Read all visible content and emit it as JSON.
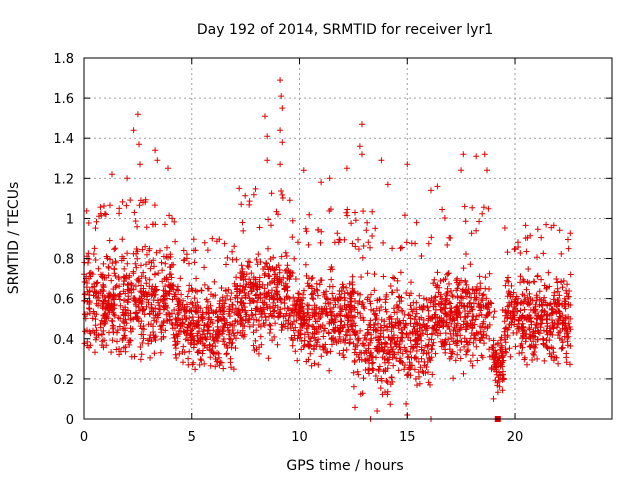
{
  "chart_data": {
    "type": "scatter",
    "title": "Day 192 of 2014, SRMTID for receiver lyr1",
    "xlabel": "GPS time / hours",
    "ylabel": "SRMTID / TECUs",
    "xlim": [
      0,
      24.5
    ],
    "ylim": [
      0,
      1.8
    ],
    "xticks": [
      0,
      5,
      10,
      15,
      20
    ],
    "yticks": [
      0,
      0.2,
      0.4,
      0.6,
      0.8,
      1,
      1.2,
      1.4,
      1.6,
      1.8
    ],
    "ytick_labels": [
      "0",
      "0.2",
      "0.4",
      "0.6",
      "0.8",
      "1",
      "1.2",
      "1.4",
      "1.6",
      "1.8"
    ],
    "xtick_labels": [
      "0",
      "5",
      "10",
      "15",
      "20"
    ],
    "grid": true,
    "marker": "plus",
    "color": "#e00000",
    "outliers": [
      {
        "x": 2.5,
        "y": 1.52
      },
      {
        "x": 2.3,
        "y": 1.44
      },
      {
        "x": 2.55,
        "y": 1.37
      },
      {
        "x": 3.3,
        "y": 1.34
      },
      {
        "x": 3.4,
        "y": 1.29
      },
      {
        "x": 2.6,
        "y": 1.27
      },
      {
        "x": 3.9,
        "y": 1.25
      },
      {
        "x": 1.3,
        "y": 1.22
      },
      {
        "x": 2.0,
        "y": 1.2
      },
      {
        "x": 8.4,
        "y": 1.51
      },
      {
        "x": 8.5,
        "y": 1.41
      },
      {
        "x": 8.5,
        "y": 1.29
      },
      {
        "x": 9.1,
        "y": 1.69
      },
      {
        "x": 9.15,
        "y": 1.61
      },
      {
        "x": 9.2,
        "y": 1.55
      },
      {
        "x": 9.1,
        "y": 1.44
      },
      {
        "x": 9.2,
        "y": 1.38
      },
      {
        "x": 9.1,
        "y": 1.27
      },
      {
        "x": 10.2,
        "y": 1.24
      },
      {
        "x": 11.4,
        "y": 1.2
      },
      {
        "x": 12.2,
        "y": 1.25
      },
      {
        "x": 12.9,
        "y": 1.47
      },
      {
        "x": 12.8,
        "y": 1.36
      },
      {
        "x": 12.9,
        "y": 1.32
      },
      {
        "x": 13.8,
        "y": 1.29
      },
      {
        "x": 15.0,
        "y": 1.27
      },
      {
        "x": 14.1,
        "y": 1.17
      },
      {
        "x": 17.6,
        "y": 1.32
      },
      {
        "x": 18.2,
        "y": 1.31
      },
      {
        "x": 18.6,
        "y": 1.32
      },
      {
        "x": 18.7,
        "y": 1.24
      },
      {
        "x": 17.5,
        "y": 1.24
      },
      {
        "x": 16.4,
        "y": 1.16
      },
      {
        "x": 16.1,
        "y": 1.14
      },
      {
        "x": 11.0,
        "y": 1.18
      },
      {
        "x": 7.2,
        "y": 1.15
      }
    ],
    "dense_segments": [
      {
        "x_start": 0.0,
        "x_end": 4.2,
        "low": 0.22,
        "high": 0.95,
        "peak": 1.1
      },
      {
        "x_start": 4.2,
        "x_end": 7.0,
        "low": 0.18,
        "high": 0.75,
        "peak": 0.9
      },
      {
        "x_start": 7.0,
        "x_end": 9.6,
        "low": 0.25,
        "high": 0.95,
        "peak": 1.15
      },
      {
        "x_start": 9.6,
        "x_end": 12.5,
        "low": 0.2,
        "high": 0.85,
        "peak": 1.05
      },
      {
        "x_start": 12.5,
        "x_end": 16.2,
        "low": 0.02,
        "high": 0.8,
        "peak": 1.05
      },
      {
        "x_start": 16.2,
        "x_end": 18.9,
        "low": 0.18,
        "high": 0.85,
        "peak": 1.1
      },
      {
        "x_start": 18.9,
        "x_end": 19.5,
        "low": 0.08,
        "high": 0.5,
        "peak": 0.55
      },
      {
        "x_start": 19.5,
        "x_end": 22.6,
        "low": 0.2,
        "high": 0.8,
        "peak": 0.97
      }
    ],
    "low_points": [
      {
        "x": 13.3,
        "y": 0.0
      },
      {
        "x": 15.0,
        "y": 0.02
      },
      {
        "x": 16.1,
        "y": 0.0
      },
      {
        "x": 19.0,
        "y": 0.1
      },
      {
        "x": 13.6,
        "y": 0.04
      }
    ],
    "square_marker": {
      "x": 19.2,
      "y": 0.0
    }
  }
}
